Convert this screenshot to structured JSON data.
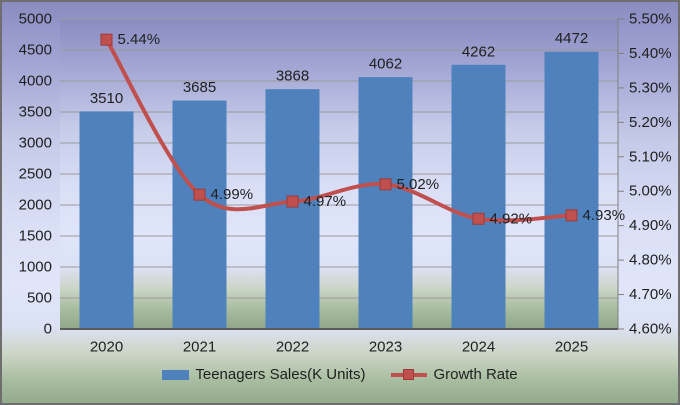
{
  "chart_data": {
    "type": "bar",
    "combo": "bar+line",
    "title": "",
    "categories": [
      "2020",
      "2021",
      "2022",
      "2023",
      "2024",
      "2025"
    ],
    "series": [
      {
        "name": "Teenagers Sales(K Units)",
        "type": "bar",
        "axis": "left",
        "color": "#4f81bd",
        "values": [
          3510,
          3685,
          3868,
          4062,
          4262,
          4472
        ],
        "data_labels": [
          "3510",
          "3685",
          "3868",
          "4062",
          "4262",
          "4472"
        ]
      },
      {
        "name": "Growth Rate",
        "type": "line",
        "axis": "right",
        "color": "#c0504d",
        "smooth": true,
        "marker": "square",
        "values": [
          5.44,
          4.99,
          4.97,
          5.02,
          4.92,
          4.93
        ],
        "data_labels": [
          "5.44%",
          "4.99%",
          "4.97%",
          "5.02%",
          "4.92%",
          "4.93%"
        ]
      }
    ],
    "left_axis": {
      "min": 0,
      "max": 5000,
      "step": 500,
      "tick_labels": [
        "0",
        "500",
        "1000",
        "1500",
        "2000",
        "2500",
        "3000",
        "3500",
        "4000",
        "4500",
        "5000"
      ]
    },
    "right_axis": {
      "min": 4.6,
      "max": 5.5,
      "step": 0.1,
      "tick_labels": [
        "4.60%",
        "4.70%",
        "4.80%",
        "4.90%",
        "5.00%",
        "5.10%",
        "5.20%",
        "5.30%",
        "5.40%",
        "5.50%"
      ]
    },
    "grid": true,
    "legend_position": "bottom"
  },
  "colors": {
    "bar": "#4f81bd",
    "line": "#c0504d",
    "marker_border": "#9e3a37",
    "grid": "#9b9b9b",
    "axis": "#808080",
    "baseline": "#5a5a5a",
    "text": "#1f1f1f",
    "border": "#6e6e6e",
    "gradient_stops": [
      [
        "0%",
        "#8a8cc1"
      ],
      [
        "15%",
        "#a2a5d3"
      ],
      [
        "35%",
        "#c6cbe9"
      ],
      [
        "55%",
        "#dadff6"
      ],
      [
        "70%",
        "#e0e5fa"
      ],
      [
        "80%",
        "#dce2f4"
      ],
      [
        "87%",
        "#ccd5c6"
      ],
      [
        "93%",
        "#aabfa2"
      ],
      [
        "100%",
        "#90a689"
      ]
    ]
  }
}
